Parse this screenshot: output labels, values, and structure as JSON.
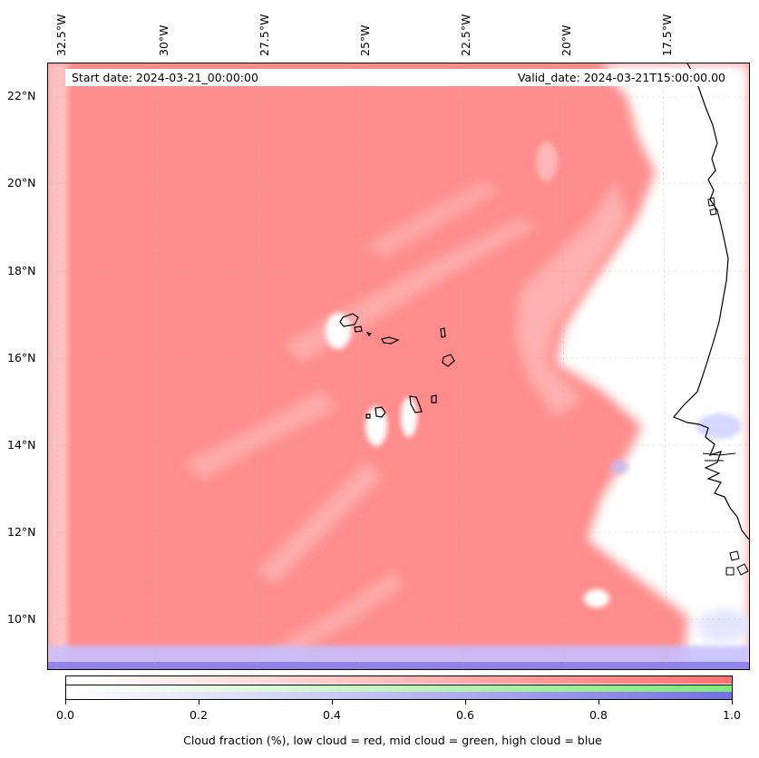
{
  "map": {
    "start_date": "Start date: 2024-03-21_00:00:00",
    "valid_date": "Valid_date: 2024-03-21T15:00:00.00",
    "extent": {
      "lon_min": -32.7,
      "lon_max": -15.9,
      "lat_min": 8.9,
      "lat_max": 22.8
    },
    "longitude_labels": [
      "32.5°W",
      "30°W",
      "27.5°W",
      "25°W",
      "22.5°W",
      "20°W",
      "17.5°W"
    ],
    "latitude_labels": [
      "22°N",
      "20°N",
      "18°N",
      "16°N",
      "14°N",
      "12°N",
      "10°N"
    ],
    "gridlines": true,
    "colors": {
      "low_cloud": "#ff7070",
      "mid_cloud": "#7fe878",
      "high_cloud": "#7470e4",
      "coast": "#000000"
    }
  },
  "colorbar": {
    "ticks": [
      "0.0",
      "0.2",
      "0.4",
      "0.6",
      "0.8",
      "1.0"
    ],
    "label": "Cloud fraction (%), low cloud = red, mid cloud = green, high cloud = blue",
    "range": [
      0.0,
      1.0
    ]
  }
}
